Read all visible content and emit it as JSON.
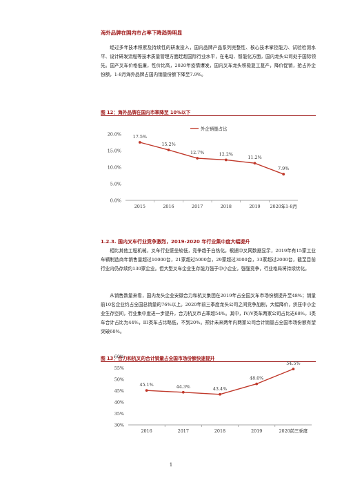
{
  "section1": {
    "title": "海外品牌在国内市占率下降趋势明显",
    "paragraph": "经过多年技术积累及持续性的研发投入，国内品牌产品系列完整性、核心技术掌控能力、试验检测水平、设计研发流程等技术质量管理方面赶超国际行业水平，在电动、智能化方面，国内龙头公司处于国际领先。国产叉车价格低廉，性价比高，2020年疫情爆发，国内叉车龙头积极复工复产，降价促销，抢占外企份额，1-8月海外品牌占国内销量份额下降至7.9%。"
  },
  "figure12": {
    "title": "图 12：海外品牌在国内市率降至 10%以下",
    "chart_data": {
      "type": "line",
      "categories": [
        "2015",
        "2016",
        "2017",
        "2018",
        "2019",
        "2020年1-8月"
      ],
      "series": [
        {
          "name": "外企销量占比",
          "values": [
            17.5,
            15.2,
            12.7,
            12.2,
            11.2,
            7.9
          ]
        }
      ],
      "data_labels": [
        "17.5%",
        "15.2%",
        "12.7%",
        "12.2%",
        "11.2%",
        "7.9%"
      ],
      "y_ticks": [
        "20.0%",
        "15.0%",
        "10.0%",
        "5.0%",
        "0.0%"
      ],
      "ylim": [
        0,
        20
      ],
      "legend_position": "top-center",
      "color": "#c0392b"
    }
  },
  "section2": {
    "heading": "1.2.3. 国内叉车行业竞争激烈，2019-2020 年行业集中度大幅提升",
    "paragraph1": "相比其他工程机械，叉车行业壁垒较低，竞争趋于白热化。根据中叉网数据显示，2019年有15家工业车辆制造商年销售量超过10000台，21家超过5000台，29家超过3000台，33家超过2000台，截至目前行业内仍存续约130家企业。但大型叉车企业生存能力强于中小企业，强强竞争，行业格局将持续优化。",
    "paragraph2": "从销售数量来看，国内龙头企业安徽合力和杭叉集团在2019年占全国叉车市场份额提升至48%；销量前10名企业约占全国总销量的76%以上。2020年前三季度龙头公司之间竞争加剧，大幅降价，挤压中小企业生存空间，行业集中度进一步提升，合力杭叉市占率超54%。其中，IV/V类车两家公司占比达68%，I类车合计占比为44%，III类车占比略低，不到20%。预计未来两年内两家公司合计销量占全国市场份额有望突破60%。"
  },
  "figure13": {
    "title": "图 13：合力和杭叉的合计销量占全国市场份额快速提升",
    "chart_data": {
      "type": "line",
      "categories": [
        "2016",
        "2017",
        "2018",
        "2019",
        "2020前三季度"
      ],
      "series": [
        {
          "values": [
            45.1,
            44.3,
            43.4,
            48.0,
            54.5
          ]
        }
      ],
      "data_labels": [
        "45.1%",
        "44.3%",
        "43.4%",
        "48.0%",
        "54.5%"
      ],
      "y_ticks": [
        "60%",
        "55%",
        "50%",
        "45%",
        "40%",
        "35%",
        "30%"
      ],
      "ylim": [
        30,
        60
      ],
      "color": "#c0392b"
    }
  },
  "footer": {
    "page_number": "1"
  }
}
